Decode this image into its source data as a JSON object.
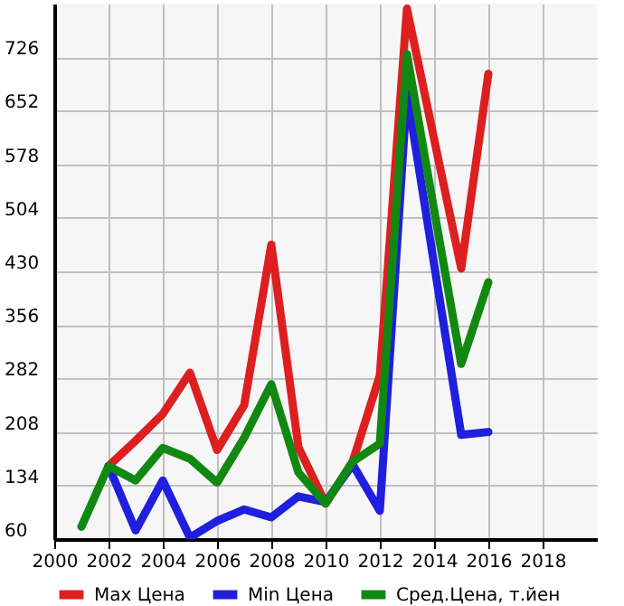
{
  "chart_data": {
    "type": "line",
    "x": [
      2001,
      2002,
      2003,
      2004,
      2005,
      2006,
      2007,
      2008,
      2009,
      2010,
      2011,
      2012,
      2013,
      2014,
      2015,
      2016
    ],
    "series": [
      {
        "name": "Max Цена",
        "color": "#dd1f1f",
        "values": [
          null,
          161,
          196,
          233,
          290,
          183,
          245,
          467,
          187,
          109,
          167,
          286,
          793,
          613,
          434,
          703
        ]
      },
      {
        "name": "Min Цена",
        "color": "#1f1fdd",
        "values": [
          null,
          161,
          72,
          141,
          62,
          85,
          101,
          90,
          119,
          111,
          163,
          99,
          677,
          440,
          204,
          208
        ]
      },
      {
        "name": "Сред.Цена, т.йен",
        "color": "#118811",
        "values": [
          77,
          161,
          141,
          186,
          171,
          138,
          200,
          274,
          152,
          109,
          167,
          192,
          730,
          515,
          302,
          415
        ]
      }
    ],
    "xlim": [
      2000,
      2020
    ],
    "xticks": [
      2000,
      2002,
      2004,
      2006,
      2008,
      2010,
      2012,
      2014,
      2016,
      2018
    ],
    "ylim": [
      60,
      800
    ],
    "yticks": [
      60,
      134,
      208,
      282,
      356,
      430,
      504,
      578,
      652,
      726
    ],
    "grid": true,
    "legend": "bottom"
  }
}
